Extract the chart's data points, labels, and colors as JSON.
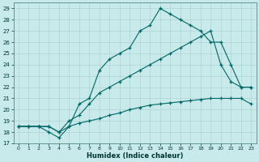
{
  "xlabel": "Humidex (Indice chaleur)",
  "bg_color": "#c8eaea",
  "grid_color": "#aed4d4",
  "line_color": "#006666",
  "xlim": [
    -0.5,
    23.5
  ],
  "ylim": [
    17.0,
    29.5
  ],
  "yticks": [
    17,
    18,
    19,
    20,
    21,
    22,
    23,
    24,
    25,
    26,
    27,
    28,
    29
  ],
  "xticks": [
    0,
    1,
    2,
    3,
    4,
    5,
    6,
    7,
    8,
    9,
    10,
    11,
    12,
    13,
    14,
    15,
    16,
    17,
    18,
    19,
    20,
    21,
    22,
    23
  ],
  "line1_x": [
    0,
    1,
    2,
    3,
    4,
    5,
    6,
    7,
    8,
    9,
    10,
    11,
    12,
    13,
    14,
    15,
    16,
    17,
    18,
    19,
    20,
    21,
    22,
    23
  ],
  "line1_y": [
    18.5,
    18.5,
    18.5,
    18.0,
    17.5,
    18.5,
    20.5,
    21.0,
    23.5,
    24.5,
    25.0,
    25.5,
    27.0,
    27.5,
    29.0,
    28.5,
    28.0,
    27.5,
    27.0,
    26.0,
    26.0,
    24.0,
    22.0,
    22.0
  ],
  "line2_x": [
    0,
    1,
    2,
    3,
    4,
    5,
    6,
    7,
    8,
    9,
    10,
    11,
    12,
    13,
    14,
    15,
    16,
    17,
    18,
    19,
    20,
    21,
    22,
    23
  ],
  "line2_y": [
    18.5,
    18.5,
    18.5,
    18.5,
    18.0,
    19.0,
    19.5,
    20.5,
    21.5,
    22.0,
    22.5,
    23.0,
    23.5,
    24.0,
    24.5,
    25.0,
    25.5,
    26.0,
    26.5,
    27.0,
    24.0,
    22.5,
    22.0,
    22.0
  ],
  "line3_x": [
    0,
    1,
    2,
    3,
    4,
    5,
    6,
    7,
    8,
    9,
    10,
    11,
    12,
    13,
    14,
    15,
    16,
    17,
    18,
    19,
    20,
    21,
    22,
    23
  ],
  "line3_y": [
    18.5,
    18.5,
    18.5,
    18.5,
    18.0,
    18.5,
    18.8,
    19.0,
    19.2,
    19.5,
    19.7,
    20.0,
    20.2,
    20.4,
    20.5,
    20.6,
    20.7,
    20.8,
    20.9,
    21.0,
    21.0,
    21.0,
    21.0,
    20.5
  ]
}
